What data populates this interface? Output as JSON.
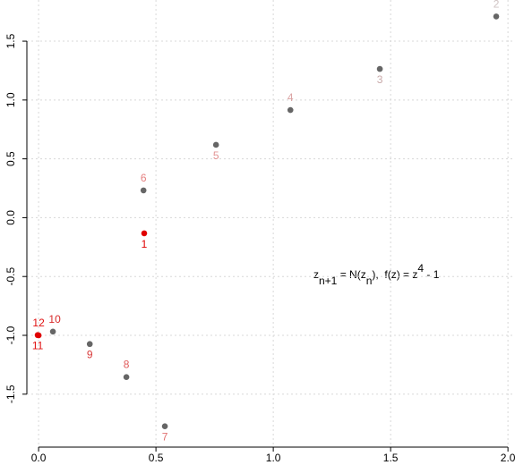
{
  "chart_data": {
    "type": "scatter",
    "x": [
      0.45,
      1.95,
      1.454,
      1.073,
      0.756,
      0.447,
      0.538,
      0.374,
      0.218,
      0.061,
      -0.004,
      0.0
    ],
    "y": [
      -0.133,
      1.71,
      1.264,
      0.915,
      0.619,
      0.232,
      -1.773,
      -1.355,
      -1.074,
      -0.968,
      -0.998,
      -1.0
    ],
    "point_labels": [
      "1",
      "2",
      "3",
      "4",
      "5",
      "6",
      "7",
      "8",
      "9",
      "10",
      "11",
      "12"
    ],
    "label_positions": [
      "below",
      "above",
      "below",
      "above",
      "below",
      "above",
      "below",
      "above",
      "below",
      "above",
      "below",
      "above"
    ],
    "point_colors": [
      "#e00000",
      "#666666",
      "#666666",
      "#666666",
      "#666666",
      "#666666",
      "#666666",
      "#666666",
      "#666666",
      "#666666",
      "#e00000",
      "#e00000"
    ],
    "label_colors": [
      "#e00000",
      "#cfc3c3",
      "#c9a9a9",
      "#dba3a3",
      "#e29393",
      "#e58080",
      "#e07070",
      "#e05a5a",
      "#d83a3a",
      "#d82a2a",
      "#e01010",
      "#e01010"
    ],
    "xlim": [
      -0.05,
      2.03
    ],
    "ylim": [
      -1.95,
      1.85
    ],
    "xticks": [
      {
        "value": 0,
        "label": "0.0"
      },
      0.5,
      {
        "value": 1,
        "label": "1.0"
      },
      1.5,
      {
        "value": 2,
        "label": "2.0"
      }
    ],
    "yticks": [
      -1.5,
      {
        "value": -1,
        "label": "-1.0"
      },
      -0.5,
      {
        "value": 0,
        "label": "0.0"
      },
      0.5,
      {
        "value": 1,
        "label": "1.0"
      },
      1.5
    ],
    "grid": true,
    "annotation": [
      {
        "text": "z"
      },
      {
        "text": "n+1",
        "shift": "sub"
      },
      {
        "text": " = N(z"
      },
      {
        "text": "n",
        "shift": "sub"
      },
      {
        "text": "),  f(z) = z"
      },
      {
        "text": "4",
        "shift": "sup"
      },
      {
        "text": " - 1"
      }
    ]
  }
}
